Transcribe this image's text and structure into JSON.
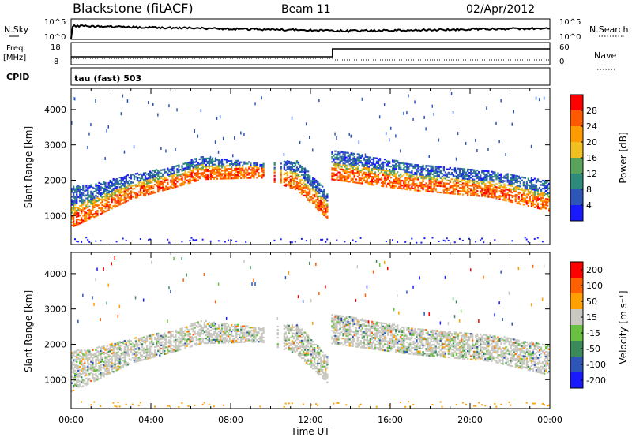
{
  "header": {
    "station": "Blackstone (fitACF)",
    "beam": "Beam 11",
    "date": "02/Apr/2012"
  },
  "top_panels": {
    "nsky_label": "N.Sky",
    "nsearch_label": "N.Search",
    "noise_ticks": [
      "10^5",
      "10^0"
    ],
    "freq_label": "Freq.",
    "freq_unit": "[MHz]",
    "freq_ticks": [
      "18",
      "8"
    ],
    "nave_label": "Nave",
    "nave_ticks": [
      "60",
      "0"
    ],
    "cpid_label": "CPID",
    "cpid_value": "tau (fast) 503"
  },
  "chart_data": [
    {
      "type": "heatmap",
      "title": "",
      "parameter": "Power",
      "xlabel": "Time UT",
      "ylabel": "Slant Range [km]",
      "xlim": [
        "00:00",
        "24:00"
      ],
      "ylim": [
        180,
        4600
      ],
      "x_ticks": [
        "00:00",
        "04:00",
        "08:00",
        "12:00",
        "16:00",
        "20:00",
        "00:00"
      ],
      "y_ticks": [
        "1000",
        "2000",
        "3000",
        "4000"
      ],
      "colorbar": {
        "label": "Power [dB]",
        "ticks": [
          "4",
          "8",
          "12",
          "16",
          "20",
          "24",
          "28"
        ],
        "range": [
          0,
          30
        ],
        "colors": [
          "#1a1aff",
          "#2e56b8",
          "#2e8a7a",
          "#5aa35a",
          "#f0c020",
          "#ff9a00",
          "#ff5a00",
          "#ff0000"
        ]
      },
      "echo_band": [
        {
          "t": 0.0,
          "center": 950,
          "top": 1850
        },
        {
          "t": 1.0,
          "center": 1200,
          "top": 1900
        },
        {
          "t": 3.0,
          "center": 1750,
          "top": 2200
        },
        {
          "t": 5.0,
          "center": 2050,
          "top": 2400
        },
        {
          "t": 6.5,
          "center": 2300,
          "top": 2700
        },
        {
          "t": 9.5,
          "center": 2350,
          "top": 2500
        },
        {
          "t": 11.3,
          "center": 2000,
          "top": 2600
        },
        {
          "t": 12.8,
          "center": 1200,
          "top": 1700
        },
        {
          "t": 13.0,
          "center": 2300,
          "top": 2900
        },
        {
          "t": 17.0,
          "center": 2000,
          "top": 2500
        },
        {
          "t": 21.0,
          "center": 1800,
          "top": 2300
        },
        {
          "t": 24.0,
          "center": 1400,
          "top": 2000
        }
      ]
    },
    {
      "type": "heatmap",
      "title": "",
      "parameter": "Velocity",
      "xlabel": "Time UT",
      "ylabel": "Slant Range [km]",
      "xlim": [
        "00:00",
        "24:00"
      ],
      "ylim": [
        180,
        4600
      ],
      "x_ticks": [
        "00:00",
        "04:00",
        "08:00",
        "12:00",
        "16:00",
        "20:00",
        "00:00"
      ],
      "y_ticks": [
        "1000",
        "2000",
        "3000",
        "4000"
      ],
      "colorbar": {
        "label": "Velocity [m s⁻¹]",
        "ticks": [
          "200",
          "100",
          "50",
          "15",
          "-15",
          "-50",
          "-100",
          "-200"
        ],
        "colors": [
          "#1a1aff",
          "#2e56b8",
          "#3a8a5a",
          "#6ac040",
          "#c8c8c0",
          "#ffa000",
          "#ff6000",
          "#ff0000"
        ]
      }
    }
  ],
  "x_axis_label": "Time UT"
}
